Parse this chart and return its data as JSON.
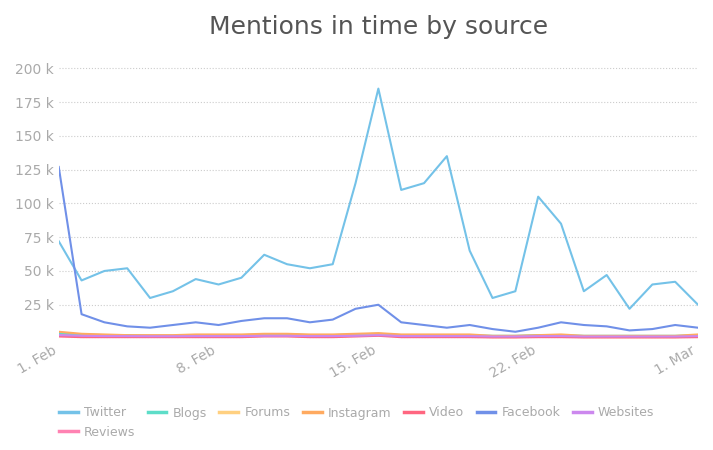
{
  "title": "Mentions in time by source",
  "title_fontsize": 18,
  "background_color": "#ffffff",
  "grid_color": "#cccccc",
  "x_labels": [
    "1. Feb",
    "8. Feb",
    "15. Feb",
    "22. Feb",
    "1. Mar"
  ],
  "x_positions": [
    0,
    7,
    14,
    21,
    28
  ],
  "ylim": [
    0,
    210000
  ],
  "yticks": [
    0,
    25000,
    50000,
    75000,
    100000,
    125000,
    150000,
    175000,
    200000
  ],
  "ytick_labels": [
    "",
    "25 k",
    "50 k",
    "75 k",
    "100 k",
    "125 k",
    "150 k",
    "175 k",
    "200 k"
  ],
  "legend": [
    {
      "label": "Twitter",
      "color": "#74c2e8"
    },
    {
      "label": "Reviews",
      "color": "#ff82b2"
    },
    {
      "label": "Blogs",
      "color": "#5dddc8"
    },
    {
      "label": "Forums",
      "color": "#ffd080"
    },
    {
      "label": "Instagram",
      "color": "#ffaa60"
    },
    {
      "label": "Video",
      "color": "#ff6680"
    },
    {
      "label": "Facebook",
      "color": "#7090e8"
    },
    {
      "label": "Websites",
      "color": "#cc88ee"
    }
  ],
  "series": {
    "Twitter": {
      "color": "#74c2e8",
      "y": [
        72000,
        43000,
        50000,
        52000,
        30000,
        35000,
        44000,
        40000,
        45000,
        62000,
        55000,
        52000,
        55000,
        115000,
        185000,
        110000,
        115000,
        135000,
        65000,
        30000,
        35000,
        105000,
        85000,
        35000,
        47000,
        22000,
        40000,
        42000,
        25000
      ]
    },
    "Facebook": {
      "color": "#7090e8",
      "y": [
        127000,
        18000,
        12000,
        9000,
        8000,
        10000,
        12000,
        10000,
        13000,
        15000,
        15000,
        12000,
        14000,
        22000,
        25000,
        12000,
        10000,
        8000,
        10000,
        7000,
        5000,
        8000,
        12000,
        10000,
        9000,
        6000,
        7000,
        10000,
        8000
      ]
    },
    "Reviews": {
      "color": "#ff82b2",
      "y": [
        3000,
        2500,
        2000,
        2000,
        2000,
        2000,
        2500,
        2000,
        2000,
        2500,
        2500,
        2000,
        2000,
        2500,
        3000,
        2000,
        2000,
        2000,
        2000,
        1500,
        1500,
        2000,
        2000,
        1500,
        1500,
        1500,
        1500,
        1500,
        2000
      ]
    },
    "Blogs": {
      "color": "#5dddc8",
      "y": [
        4000,
        3000,
        2500,
        2500,
        2000,
        2000,
        2500,
        2500,
        2500,
        3000,
        3000,
        2500,
        2500,
        3000,
        3500,
        2500,
        2500,
        2500,
        2500,
        2000,
        2000,
        2500,
        2500,
        2000,
        2000,
        2000,
        2000,
        2000,
        2500
      ]
    },
    "Forums": {
      "color": "#ffd080",
      "y": [
        2000,
        1500,
        1500,
        1500,
        1500,
        1500,
        1500,
        1500,
        1500,
        2000,
        2000,
        1500,
        1500,
        2000,
        2500,
        1500,
        1500,
        1500,
        1500,
        1000,
        1000,
        1500,
        1500,
        1000,
        1000,
        1000,
        1000,
        1000,
        1500
      ]
    },
    "Instagram": {
      "color": "#ffaa60",
      "y": [
        5000,
        3500,
        3000,
        2500,
        2500,
        2500,
        3000,
        3000,
        3000,
        3500,
        3500,
        3000,
        3000,
        3500,
        4000,
        3000,
        3000,
        3000,
        3000,
        2000,
        2000,
        2500,
        3000,
        2000,
        2000,
        2000,
        2000,
        2000,
        3000
      ]
    },
    "Video": {
      "color": "#ff6680",
      "y": [
        1500,
        1000,
        1000,
        1000,
        1000,
        1000,
        1000,
        1000,
        1000,
        1500,
        1500,
        1000,
        1000,
        1500,
        2000,
        1000,
        1000,
        1000,
        1000,
        800,
        800,
        1000,
        1000,
        800,
        800,
        800,
        800,
        800,
        1000
      ]
    },
    "Websites": {
      "color": "#cc88ee",
      "y": [
        2500,
        2000,
        1800,
        1800,
        1700,
        1700,
        1800,
        1800,
        1800,
        2000,
        2000,
        1800,
        1800,
        2000,
        2500,
        1800,
        1800,
        1800,
        1800,
        1500,
        1500,
        1800,
        1800,
        1500,
        1500,
        1500,
        1500,
        1500,
        1800
      ]
    }
  }
}
